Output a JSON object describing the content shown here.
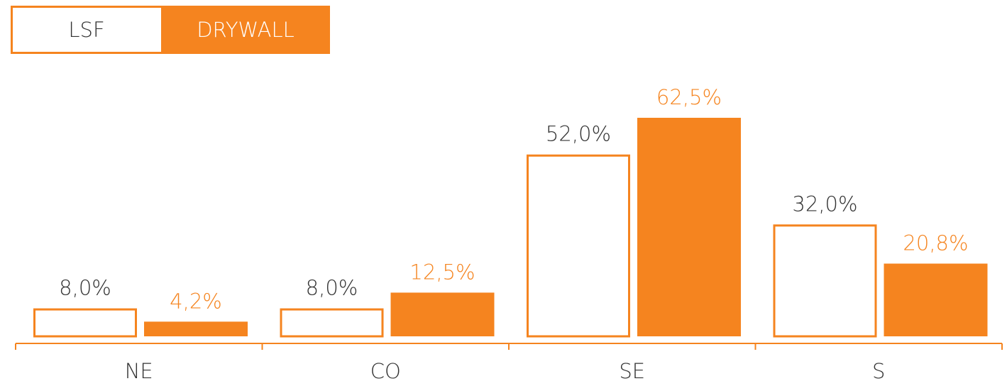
{
  "chart_data": {
    "type": "bar",
    "categories": [
      "NE",
      "CO",
      "SE",
      "S"
    ],
    "series": [
      {
        "name": "LSF",
        "color": "#f5841f",
        "values": [
          8.0,
          8.0,
          52.0,
          32.0
        ],
        "value_labels": [
          "8,0%",
          "8,0%",
          "52,0%",
          "32,0%"
        ]
      },
      {
        "name": "DRYWALL",
        "color": "#f5841f",
        "values": [
          4.2,
          12.5,
          62.5,
          20.8
        ],
        "value_labels": [
          "4,2%",
          "12,5%",
          "62,5%",
          "20,8%"
        ]
      }
    ]
  }
}
